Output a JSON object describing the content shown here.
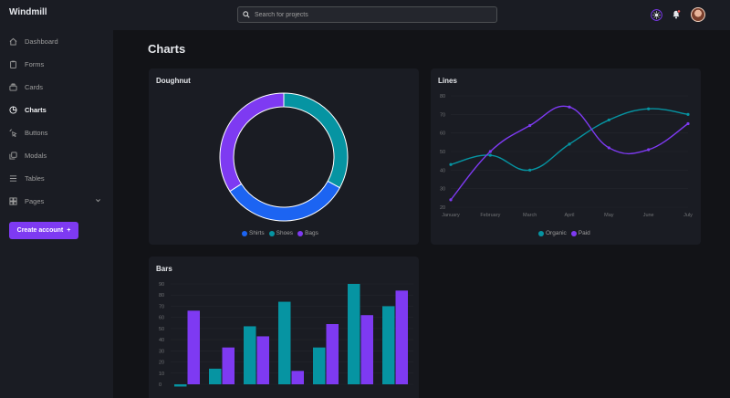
{
  "app": {
    "name": "Windmill"
  },
  "search": {
    "placeholder": "Search for projects"
  },
  "sidebar": {
    "items": [
      {
        "label": "Dashboard",
        "icon": "home-icon"
      },
      {
        "label": "Forms",
        "icon": "clipboard-icon"
      },
      {
        "label": "Cards",
        "icon": "cards-icon"
      },
      {
        "label": "Charts",
        "icon": "pie-chart-icon",
        "active": true
      },
      {
        "label": "Buttons",
        "icon": "cursor-click-icon"
      },
      {
        "label": "Modals",
        "icon": "modals-icon"
      },
      {
        "label": "Tables",
        "icon": "table-icon"
      },
      {
        "label": "Pages",
        "icon": "pages-icon"
      }
    ],
    "create_account": "Create account",
    "create_account_suffix": "+"
  },
  "header": {
    "icons": [
      "theme-toggle-icon",
      "notification-bell-icon",
      "avatar"
    ]
  },
  "page": {
    "title": "Charts"
  },
  "colors": {
    "teal": "#0694a2",
    "purple": "#7e3af2",
    "blue": "#1c64f2",
    "bg": "#121317",
    "card": "#1a1c23"
  },
  "chart_data": [
    {
      "type": "pie",
      "title": "Doughnut",
      "categories": [
        "Shirts",
        "Shoes",
        "Bags"
      ],
      "values": [
        33,
        33,
        34
      ],
      "colors": [
        "#1c64f2",
        "#0694a2",
        "#7e3af2"
      ],
      "legend": "bottom"
    },
    {
      "type": "line",
      "title": "Lines",
      "x": [
        "January",
        "February",
        "March",
        "April",
        "May",
        "June",
        "July"
      ],
      "series": [
        {
          "name": "Organic",
          "values": [
            43,
            48,
            40,
            54,
            67,
            73,
            70
          ],
          "color": "#0694a2"
        },
        {
          "name": "Paid",
          "values": [
            24,
            50,
            64,
            74,
            52,
            51,
            65
          ],
          "color": "#7e3af2"
        }
      ],
      "yticks": [
        20,
        30,
        40,
        50,
        60,
        70,
        80
      ],
      "ylim": [
        20,
        80
      ],
      "legend": "bottom"
    },
    {
      "type": "bar",
      "title": "Bars",
      "series": [
        {
          "color": "#0694a2",
          "values": [
            -2,
            14,
            52,
            74,
            33,
            90,
            70
          ]
        },
        {
          "color": "#7e3af2",
          "values": [
            66,
            33,
            43,
            12,
            54,
            62,
            84
          ]
        }
      ],
      "yticks": [
        0,
        10,
        20,
        30,
        40,
        50,
        60,
        70,
        80,
        90
      ],
      "ylim": [
        0,
        90
      ]
    }
  ]
}
